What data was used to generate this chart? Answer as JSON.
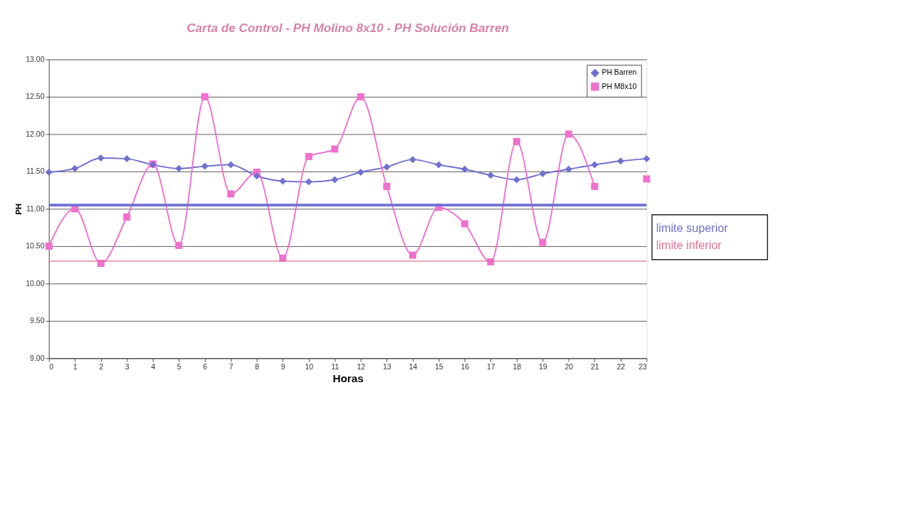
{
  "chart_data": {
    "type": "line",
    "title": "Carta de Control - PH Molino 8x10 - PH Solución Barren",
    "xlabel": "Horas",
    "ylabel": "PH",
    "x": [
      0,
      1,
      2,
      3,
      4,
      5,
      6,
      7,
      8,
      9,
      10,
      11,
      12,
      13,
      14,
      15,
      16,
      17,
      18,
      19,
      20,
      21,
      22,
      23
    ],
    "series": [
      {
        "name": "PH Barren",
        "color": "#7070d0",
        "marker": "diamond",
        "values": [
          11.49,
          11.54,
          11.68,
          11.67,
          11.59,
          11.54,
          11.57,
          11.59,
          11.44,
          11.37,
          11.36,
          11.39,
          11.49,
          11.56,
          11.66,
          11.59,
          11.53,
          11.45,
          11.39,
          11.47,
          11.53,
          11.59,
          11.64,
          11.67
        ]
      },
      {
        "name": "PH M8x10",
        "color": "#f070d0",
        "marker": "square",
        "values": [
          10.5,
          11.0,
          10.27,
          10.89,
          11.6,
          10.51,
          12.5,
          11.2,
          11.49,
          10.34,
          11.7,
          11.8,
          12.5,
          11.3,
          10.38,
          11.02,
          10.8,
          10.29,
          11.9,
          10.55,
          12.0,
          11.3,
          null,
          11.4
        ]
      }
    ],
    "ref_lines": [
      {
        "axis": "y",
        "value": 11.05,
        "label": "limite superior",
        "color": "#7070d0"
      },
      {
        "axis": "y",
        "value": 10.3,
        "label": "limite inferior",
        "color": "#e07090"
      }
    ],
    "xlim": [
      0,
      23
    ],
    "xticks": [
      0,
      1,
      2,
      3,
      4,
      5,
      6,
      7,
      8,
      9,
      10,
      11,
      12,
      13,
      14,
      15,
      16,
      17,
      18,
      19,
      20,
      21,
      22,
      23
    ],
    "ylim": [
      9,
      13
    ],
    "yticks": [
      {
        "value": 9,
        "label": "9.00"
      },
      {
        "value": 9.5,
        "label": "9.50"
      },
      {
        "value": 10,
        "label": "10.00"
      },
      {
        "value": 10.5,
        "label": "10.50"
      },
      {
        "value": 11,
        "label": "11.00"
      },
      {
        "value": 11.5,
        "label": "11.50"
      },
      {
        "value": 12,
        "label": "12.00"
      },
      {
        "value": 12.5,
        "label": "12.50"
      },
      {
        "value": 13,
        "label": "13.00"
      }
    ],
    "grid": "y",
    "legend": "top right",
    "line_style": "solid"
  }
}
